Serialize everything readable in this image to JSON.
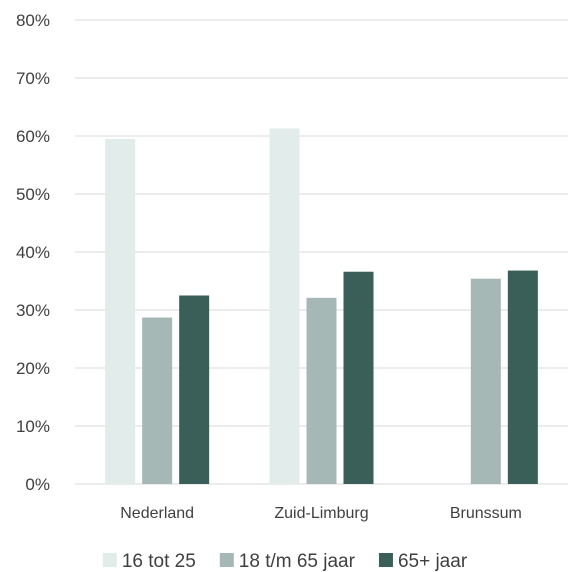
{
  "chart_data": {
    "type": "bar",
    "title": "",
    "xlabel": "",
    "ylabel": "",
    "categories": [
      "Nederland",
      "Zuid-Limburg",
      "Brunssum"
    ],
    "series": [
      {
        "name": "16 tot 25",
        "color": "#e2ecea",
        "values": [
          0.595,
          0.613,
          null
        ]
      },
      {
        "name": "18 t/m 65 jaar",
        "color": "#a6b8b5",
        "values": [
          0.287,
          0.321,
          0.354
        ]
      },
      {
        "name": "65+ jaar",
        "color": "#3a5e58",
        "values": [
          0.325,
          0.366,
          0.368
        ]
      }
    ],
    "ylim": [
      0,
      0.8
    ],
    "yticks": [
      0,
      0.1,
      0.2,
      0.3,
      0.4,
      0.5,
      0.6,
      0.7,
      0.8
    ],
    "ytick_labels": [
      "0%",
      "10%",
      "20%",
      "30%",
      "40%",
      "50%",
      "60%",
      "70%",
      "80%"
    ],
    "grid": true,
    "legend_position": "bottom"
  }
}
